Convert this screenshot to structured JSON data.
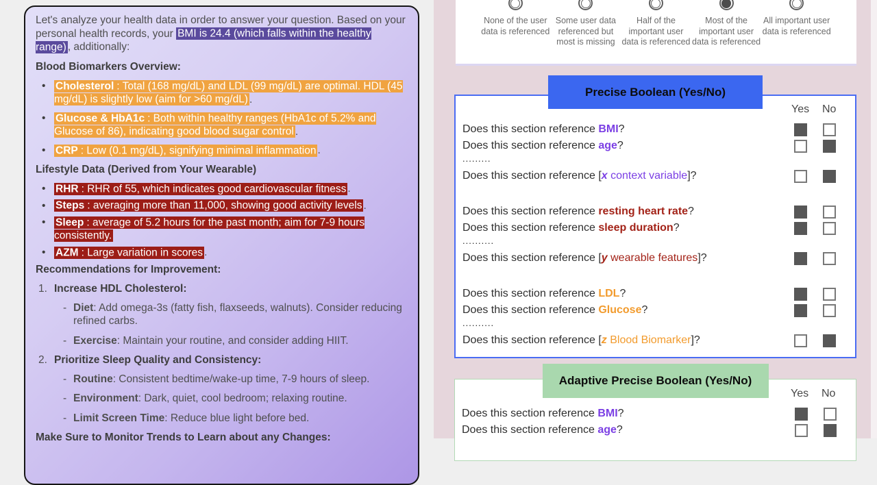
{
  "colors": {
    "page_bg": "#efefef",
    "right_bg": "#e6d6dc",
    "card_border": "#151515",
    "card_gradient_start": "#e2dff8",
    "card_gradient_end": "#ad96e6",
    "highlight_purple": "#5a4a9d",
    "highlight_orange": "#f0a340",
    "highlight_red": "#9c1d17",
    "keyword_purple": "#7b3fe4",
    "keyword_red": "#a32318",
    "keyword_orange": "#f29b2d",
    "blue_header": "#3b67f0",
    "blue_border": "#4a6cf3",
    "green_header": "#a9d8ae",
    "checkbox_fill": "#575757"
  },
  "health_card": {
    "blocks": [
      {
        "type": "p",
        "runs": [
          {
            "t": "Let's analyze your health data in order to answer your question. Based on your personal health records, your "
          },
          {
            "t": "BMI is 24.4 (which falls within the healthy range)",
            "hl": "purple"
          },
          {
            "t": ", additionally:"
          }
        ]
      },
      {
        "type": "h",
        "runs": [
          {
            "t": "Blood Biomarkers Overview:",
            "b": true
          }
        ]
      },
      {
        "type": "bullets",
        "tight": false,
        "items": [
          {
            "runs": [
              {
                "t": "Cholesterol",
                "b": true,
                "hl": "orange"
              },
              {
                "t": ": Total (168 mg/dL) and LDL (99 mg/dL) are optimal. HDL (45 mg/dL) is slightly low (aim for >60 mg/dL)",
                "hl": "orange"
              },
              {
                "t": "."
              }
            ]
          },
          {
            "runs": [
              {
                "t": "Glucose & HbA1c",
                "b": true,
                "hl": "orange"
              },
              {
                "t": ": Both within healthy ranges (HbA1c of 5.2% and Glucose of 86), indicating good blood sugar control",
                "hl": "orange"
              },
              {
                "t": "."
              }
            ]
          },
          {
            "runs": [
              {
                "t": "CRP",
                "b": true,
                "hl": "orange"
              },
              {
                "t": ": Low (0.1 mg/dL), signifying minimal inflammation",
                "hl": "orange"
              },
              {
                "t": "."
              }
            ]
          }
        ]
      },
      {
        "type": "h",
        "runs": [
          {
            "t": "Lifestyle Data (Derived from Your Wearable)",
            "b": true
          }
        ]
      },
      {
        "type": "bullets",
        "tight": true,
        "items": [
          {
            "runs": [
              {
                "t": "RHR",
                "b": true,
                "hl": "red"
              },
              {
                "t": ": RHR of 55, which indicates good cardiovascular fitness",
                "hl": "red"
              },
              {
                "t": "."
              }
            ]
          },
          {
            "runs": [
              {
                "t": "Steps",
                "b": true,
                "hl": "red"
              },
              {
                "t": ": averaging more than 11,000, showing good activity levels",
                "hl": "red"
              },
              {
                "t": "."
              }
            ]
          },
          {
            "runs": [
              {
                "t": "Sleep",
                "b": true,
                "hl": "red"
              },
              {
                "t": ": average of 5.2 hours for the past month; aim for 7-9 hours consistently.",
                "hl": "red"
              }
            ]
          },
          {
            "runs": [
              {
                "t": "AZM",
                "b": true,
                "hl": "red"
              },
              {
                "t": ": Large variation in scores",
                "hl": "red"
              },
              {
                "t": "."
              }
            ]
          }
        ]
      },
      {
        "type": "h",
        "runs": [
          {
            "t": "Recommendations for Improvement:",
            "b": true
          }
        ]
      },
      {
        "type": "numbered",
        "items": [
          {
            "num": "1.",
            "title": "Increase HDL Cholesterol:",
            "subs": [
              {
                "runs": [
                  {
                    "t": "Diet",
                    "b": true
                  },
                  {
                    "t": ": Add omega-3s (fatty fish, flaxseeds, walnuts). Consider reducing refined carbs."
                  }
                ]
              },
              {
                "runs": [
                  {
                    "t": "Exercise",
                    "b": true
                  },
                  {
                    "t": ": Maintain your routine, and consider adding HIIT."
                  }
                ]
              }
            ]
          },
          {
            "num": "2.",
            "title": "Prioritize Sleep Quality and Consistency:",
            "subs": [
              {
                "runs": [
                  {
                    "t": "Routine",
                    "b": true
                  },
                  {
                    "t": ": Consistent bedtime/wake-up time, 7-9 hours of sleep."
                  }
                ]
              },
              {
                "runs": [
                  {
                    "t": "Environment",
                    "b": true
                  },
                  {
                    "t": ": Dark, quiet, cool bedroom; relaxing routine."
                  }
                ]
              },
              {
                "runs": [
                  {
                    "t": "Limit Screen Time",
                    "b": true
                  },
                  {
                    "t": ": Reduce blue light before bed."
                  }
                ]
              }
            ]
          }
        ]
      },
      {
        "type": "h",
        "runs": [
          {
            "t": "Make Sure to Monitor Trends to Learn about any Changes:",
            "b": true
          }
        ]
      }
    ]
  },
  "likert": {
    "options": [
      {
        "label": "None of the user data is referenced",
        "selected": false
      },
      {
        "label": "Some user data referenced but most is missing",
        "selected": false
      },
      {
        "label": "Half of the important user data is referenced",
        "selected": false
      },
      {
        "label": "Most of the important user data is referenced",
        "selected": true
      },
      {
        "label": "All important user data is referenced",
        "selected": false
      }
    ]
  },
  "panels": [
    {
      "title": "Precise Boolean (Yes/No)",
      "theme": "blue",
      "yes_header": "Yes",
      "no_header": "No",
      "rows": [
        {
          "type": "q",
          "prefix": "Does this section reference ",
          "keyword": "BMI",
          "color": "purple",
          "suffix": "?",
          "answer": "yes"
        },
        {
          "type": "q",
          "prefix": "Does this section reference ",
          "keyword": "age",
          "color": "purple",
          "suffix": "?",
          "answer": "no"
        },
        {
          "type": "dots",
          "text": "........."
        },
        {
          "type": "q",
          "prefix": "Does this section reference [",
          "var": "x",
          "keyword": " context variable",
          "color": "purple",
          "suffix": "]?",
          "answer": "no"
        },
        {
          "type": "gap"
        },
        {
          "type": "q",
          "prefix": "Does this section reference ",
          "keyword": "resting heart rate",
          "color": "red",
          "suffix": "?",
          "answer": "yes"
        },
        {
          "type": "q",
          "prefix": "Does this section reference ",
          "keyword": "sleep duration",
          "color": "red",
          "suffix": "?",
          "answer": "yes"
        },
        {
          "type": "dots",
          "text": ".........."
        },
        {
          "type": "q",
          "prefix": "Does this section reference [",
          "var": "y",
          "keyword": " wearable features",
          "color": "red",
          "suffix": "]?",
          "answer": "yes"
        },
        {
          "type": "gap"
        },
        {
          "type": "q",
          "prefix": "Does this section reference ",
          "keyword": "LDL",
          "color": "orange",
          "suffix": "?",
          "answer": "yes"
        },
        {
          "type": "q",
          "prefix": "Does this section reference ",
          "keyword": "Glucose",
          "color": "orange",
          "suffix": "?",
          "answer": "yes"
        },
        {
          "type": "dots",
          "text": ".........."
        },
        {
          "type": "q",
          "prefix": "Does this section reference [",
          "var": "z",
          "keyword": " Blood Biomarker",
          "color": "orange",
          "suffix": "]?",
          "answer": "no"
        }
      ]
    },
    {
      "title": "Adaptive Precise Boolean (Yes/No)",
      "theme": "green",
      "yes_header": "Yes",
      "no_header": "No",
      "rows": [
        {
          "type": "q",
          "prefix": "Does this section reference ",
          "keyword": "BMI",
          "color": "purple",
          "suffix": "?",
          "answer": "yes"
        },
        {
          "type": "q",
          "prefix": "Does this section reference ",
          "keyword": "age",
          "color": "purple",
          "suffix": "?",
          "answer": "no"
        }
      ]
    }
  ]
}
